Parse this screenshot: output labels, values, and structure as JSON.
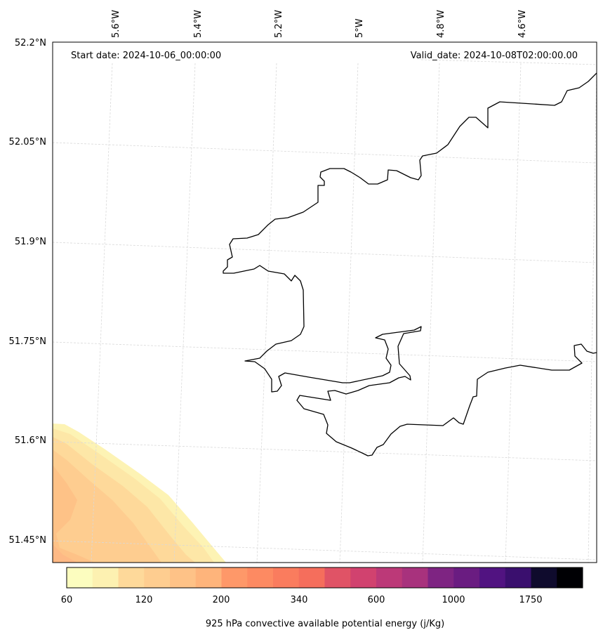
{
  "map": {
    "start_label": "Start date: 2024-10-06_00:00:00",
    "valid_label": "Valid_date: 2024-10-08T02:00:00.00",
    "lon_labels": [
      "5.6°W",
      "5.4°W",
      "5.2°W",
      "5°W",
      "4.8°W",
      "4.6°W"
    ],
    "lat_labels": [
      "52.2°N",
      "52.05°N",
      "51.9°N",
      "51.75°N",
      "51.6°N",
      "51.45°N"
    ],
    "coastline_color": "#000000",
    "gridline_color": "#d9d9d9"
  },
  "colorbar": {
    "label": "925 hPa convective available potential energy (j/Kg)",
    "tick_labels": [
      "60",
      "120",
      "200",
      "340",
      "600",
      "1000",
      "1750"
    ],
    "colors": [
      "#fcfdbf",
      "#fdf1b1",
      "#fde5a5",
      "#fed99a",
      "#fecd90",
      "#fec287",
      "#feb47b",
      "#fea671",
      "#fe9869",
      "#fd8a62",
      "#fa7c5e",
      "#f56e5c",
      "#ed5f5f",
      "#e05366",
      "#d1426f",
      "#bc3978",
      "#a8327d",
      "#932b80",
      "#7e2482",
      "#6a1c81",
      "#511381",
      "#3a0f6e",
      "#221150",
      "#0f0b2d",
      "#000004"
    ],
    "levels_shown": 20
  }
}
